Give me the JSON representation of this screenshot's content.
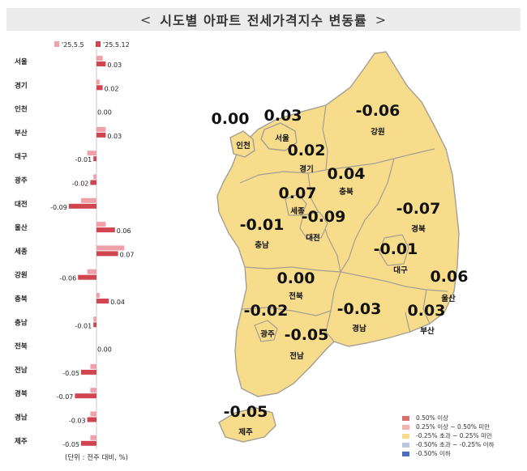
{
  "title": "시도별 아파트 전세가격지수 변동률",
  "unit_note": "(단위 : 전주 대비, %)",
  "colors": {
    "prev_week": "#f0a0a8",
    "this_week": "#d0454f",
    "map_fill": "#f7dc8c",
    "map_border": "#a49f92",
    "bar_axis": "#c8c8c8"
  },
  "chart_data": {
    "type": "bar",
    "orientation": "horizontal",
    "categories": [
      "서울",
      "경기",
      "인천",
      "부산",
      "대구",
      "광주",
      "대전",
      "울산",
      "세종",
      "강원",
      "충북",
      "충남",
      "전북",
      "전남",
      "경북",
      "경남",
      "제주"
    ],
    "series": [
      {
        "name": "'25.5.5",
        "values": [
          0.02,
          0.01,
          0.0,
          0.03,
          -0.03,
          -0.01,
          -0.05,
          0.03,
          0.09,
          -0.03,
          0.01,
          -0.01,
          0.0,
          -0.02,
          -0.02,
          -0.02,
          -0.02
        ]
      },
      {
        "name": "'25.5.12",
        "values": [
          0.03,
          0.02,
          0.0,
          0.03,
          -0.01,
          -0.02,
          -0.09,
          0.06,
          0.07,
          -0.06,
          0.04,
          -0.01,
          0.0,
          -0.05,
          -0.07,
          -0.03,
          -0.05
        ]
      }
    ],
    "data_labels": [
      "0.03",
      "0.02",
      "0.00",
      "0.03",
      "-0.01",
      "-0.02",
      "-0.09",
      "0.06",
      "0.07",
      "-0.06",
      "0.04",
      "-0.01",
      "0.00",
      "-0.05",
      "-0.07",
      "-0.03",
      "-0.05"
    ],
    "legend_placement": "top"
  },
  "map": {
    "regions": [
      {
        "name": "인천",
        "value": "0.00",
        "color": "#f7dc8c"
      },
      {
        "name": "서울",
        "value": "0.03",
        "color": "#f7dc8c"
      },
      {
        "name": "경기",
        "value": "0.02",
        "color": "#f7dc8c"
      },
      {
        "name": "강원",
        "value": "-0.06",
        "color": "#f7dc8c"
      },
      {
        "name": "충북",
        "value": "0.04",
        "color": "#f7dc8c"
      },
      {
        "name": "세종",
        "value": "0.07",
        "color": "#f7dc8c"
      },
      {
        "name": "충남",
        "value": "-0.01",
        "color": "#f7dc8c"
      },
      {
        "name": "대전",
        "value": "-0.09",
        "color": "#f7dc8c"
      },
      {
        "name": "경북",
        "value": "-0.07",
        "color": "#f7dc8c"
      },
      {
        "name": "대구",
        "value": "-0.01",
        "color": "#f7dc8c"
      },
      {
        "name": "전북",
        "value": "0.00",
        "color": "#f7dc8c"
      },
      {
        "name": "울산",
        "value": "0.06",
        "color": "#f7dc8c"
      },
      {
        "name": "광주",
        "value": "-0.02",
        "color": "#f7dc8c"
      },
      {
        "name": "경남",
        "value": "-0.03",
        "color": "#f7dc8c"
      },
      {
        "name": "부산",
        "value": "0.03",
        "color": "#f7dc8c"
      },
      {
        "name": "전남",
        "value": "-0.05",
        "color": "#f7dc8c"
      },
      {
        "name": "제주",
        "value": "-0.05",
        "color": "#f7dc8c"
      }
    ],
    "legend": [
      {
        "label": "0.50% 이상",
        "color": "#d9706e"
      },
      {
        "label": "0.25% 이상 ~ 0.50% 미만",
        "color": "#f4b3b3"
      },
      {
        "label": "-0.25% 초과 ~ 0.25% 미만",
        "color": "#f7dc8c"
      },
      {
        "label": "-0.50% 초과 ~ -0.25% 이하",
        "color": "#b8c6e0"
      },
      {
        "label": "-0.50% 이하",
        "color": "#4a6fbd"
      }
    ]
  }
}
